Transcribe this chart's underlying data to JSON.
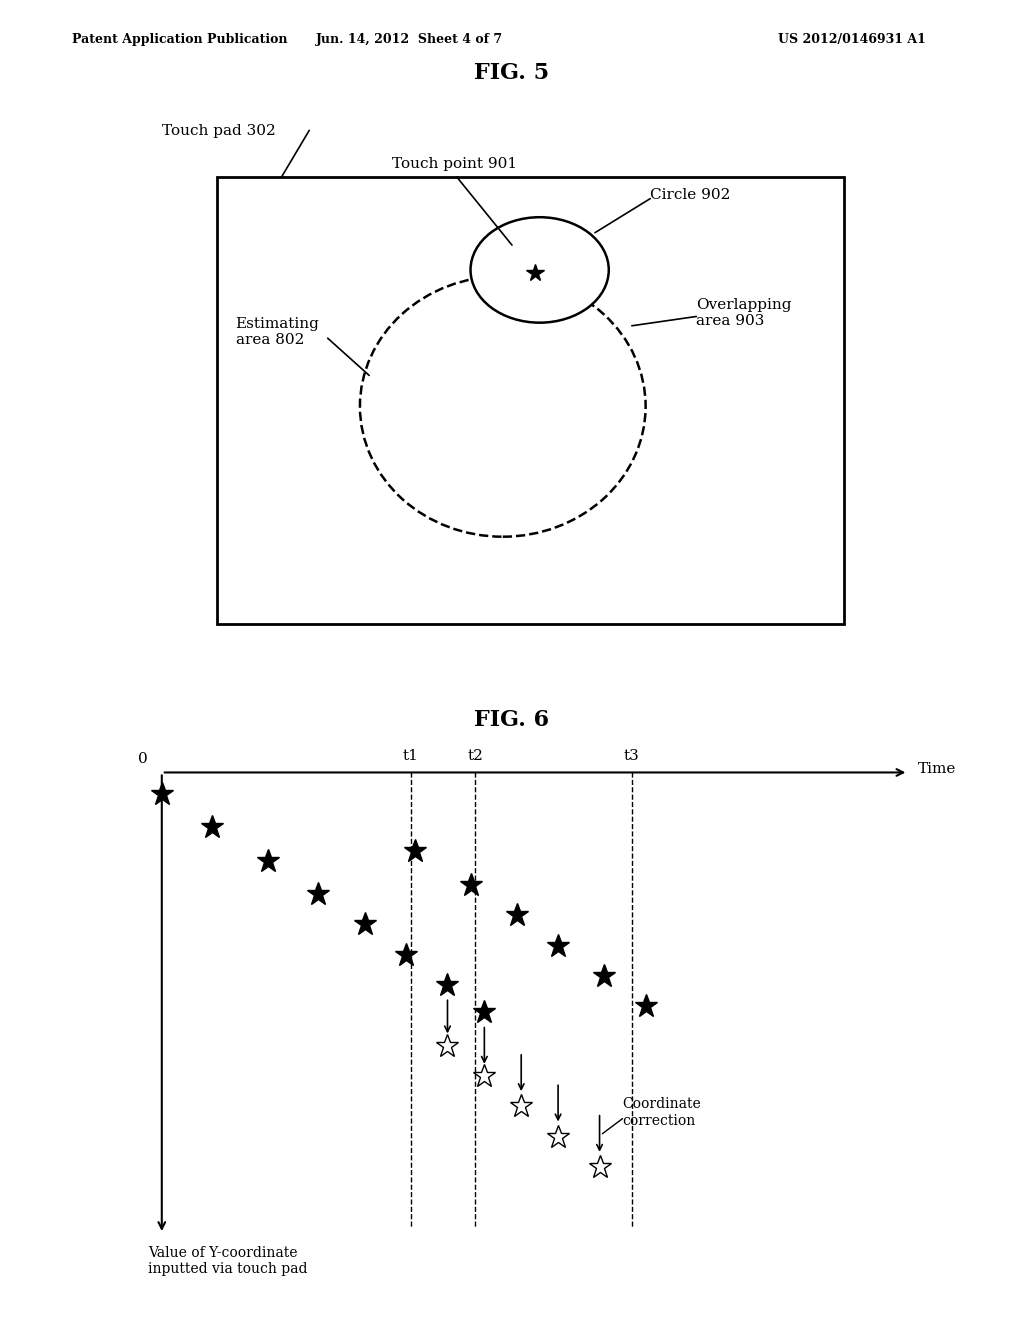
{
  "fig_width": 10.24,
  "fig_height": 13.2,
  "bg_color": "#ffffff",
  "header_left": "Patent Application Publication",
  "header_center": "Jun. 14, 2012  Sheet 4 of 7",
  "header_right": "US 2012/0146931 A1",
  "fig5_title": "FIG. 5",
  "fig6_title": "FIG. 6",
  "fig5_label_touchpad": "Touch pad 302",
  "fig5_label_touchpoint": "Touch point 901",
  "fig5_label_circle": "Circle 902",
  "fig5_label_estimating": "Estimating\narea 802",
  "fig5_label_overlapping": "Overlapping\narea 903",
  "fig6_label_time": "Time",
  "fig6_label_ycoord": "Value of Y-coordinate\ninputted via touch pad",
  "fig6_label_correction": "Coordinate\ncorrection",
  "fig6_label_t1": "t1",
  "fig6_label_t2": "t2",
  "fig6_label_t3": "t3",
  "fig6_label_0": "0",
  "header_fontsize": 9,
  "title_fontsize": 16,
  "label_fontsize": 11,
  "small_label_fontsize": 10
}
